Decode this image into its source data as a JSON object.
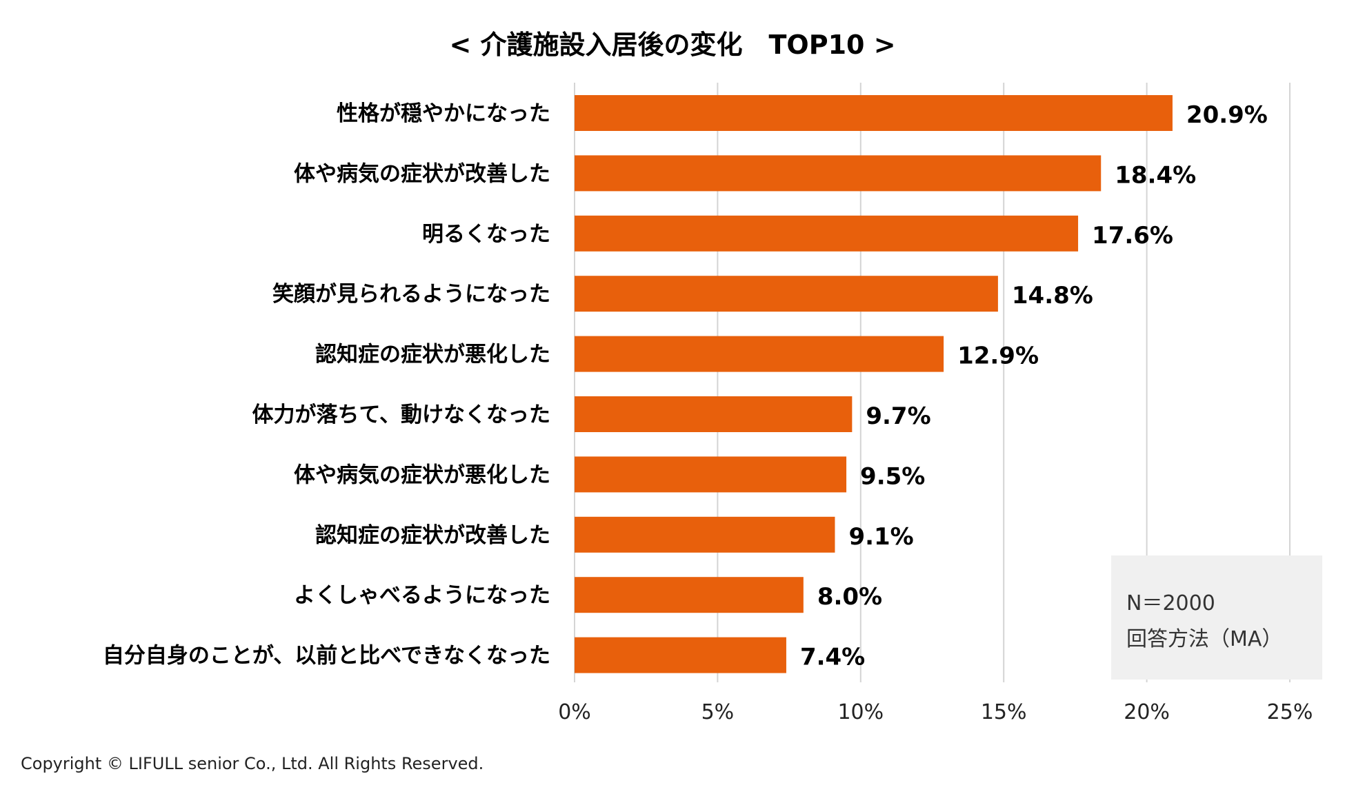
{
  "chart_data": {
    "type": "bar",
    "orientation": "horizontal",
    "title": "< 介護施設入居後の変化　TOP10 >",
    "categories": [
      "性格が穏やかになった",
      "体や病気の症状が改善した",
      "明るくなった",
      "笑顔が見られるようになった",
      "認知症の症状が悪化した",
      "体力が落ちて、動けなくなった",
      "体や病気の症状が悪化した",
      "認知症の症状が改善した",
      "よくしゃべるようになった",
      "自分自身のことが、以前と比べできなくなった"
    ],
    "values": [
      20.9,
      18.4,
      17.6,
      14.8,
      12.9,
      9.7,
      9.5,
      9.1,
      8.0,
      7.4
    ],
    "value_labels": [
      "20.9%",
      "18.4%",
      "17.6%",
      "14.8%",
      "12.9%",
      "9.7%",
      "9.5%",
      "9.1%",
      "8.0%",
      "7.4%"
    ],
    "xlim": [
      0,
      25
    ],
    "x_ticks": [
      0,
      5,
      10,
      15,
      20,
      25
    ],
    "x_tick_labels": [
      "0%",
      "5%",
      "10%",
      "15%",
      "20%",
      "25%"
    ],
    "xlabel": "",
    "ylabel": "",
    "grid": "vertical",
    "bar_color": "#e8600c"
  },
  "note": {
    "sample": "N＝2000",
    "method": "回答方法（MA）"
  },
  "copyright": "Copyright © LIFULL senior Co., Ltd. All Rights Reserved."
}
